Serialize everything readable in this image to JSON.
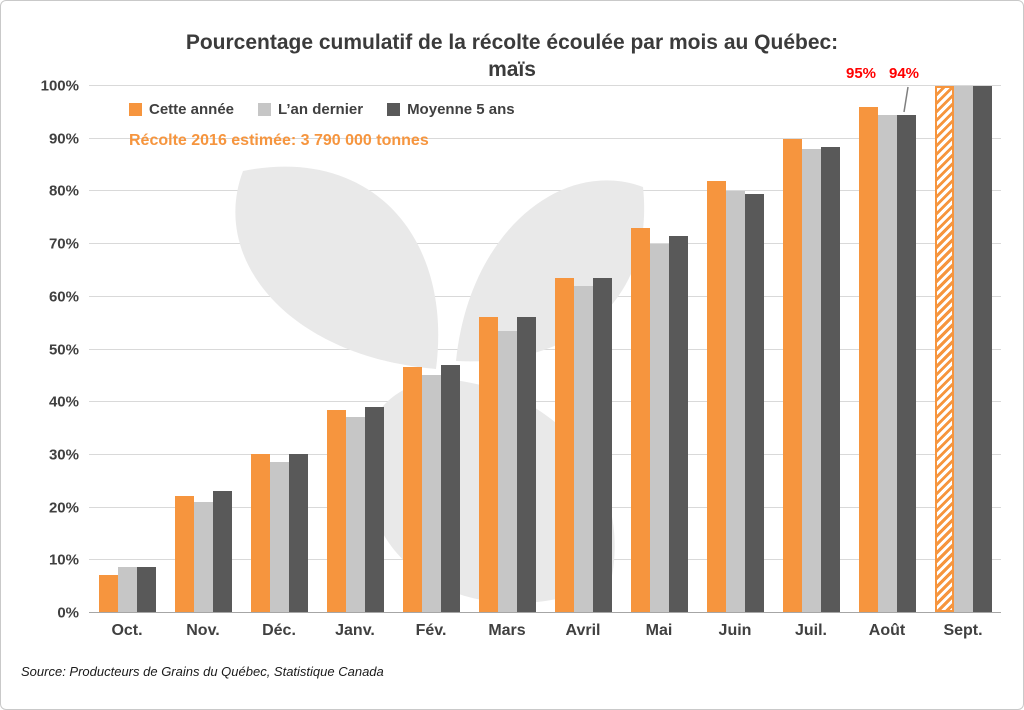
{
  "chart_data": {
    "type": "bar",
    "title_line1": "Pourcentage cumulatif de la récolte écoulée par mois au Québec:",
    "title_line2": "maïs",
    "estimate_note": "Récolte 2016 estimée: 3 790 000 tonnes",
    "source": "Source: Producteurs de Grains du Québec, Statistique Canada",
    "categories": [
      "Oct.",
      "Nov.",
      "Déc.",
      "Janv.",
      "Fév.",
      "Mars",
      "Avril",
      "Mai",
      "Juin",
      "Juil.",
      "Août",
      "Sept."
    ],
    "series": [
      {
        "name": "Cette année",
        "color": "#F6953E",
        "values": [
          7,
          22,
          30,
          38.5,
          46.5,
          56,
          63.5,
          73,
          82,
          90,
          96,
          100
        ]
      },
      {
        "name": "L’an dernier",
        "color": "#C6C6C6",
        "values": [
          8.5,
          21,
          28.5,
          37,
          45,
          53.5,
          62,
          70,
          80,
          88,
          94.5,
          100
        ]
      },
      {
        "name": "Moyenne 5 ans",
        "color": "#595959",
        "values": [
          8.5,
          23,
          30,
          39,
          47,
          56,
          63.5,
          71.5,
          79.5,
          88.5,
          94.5,
          100
        ]
      }
    ],
    "ylim": [
      0,
      100
    ],
    "ytick_step": 10,
    "yticks": [
      "0%",
      "10%",
      "20%",
      "30%",
      "40%",
      "50%",
      "60%",
      "70%",
      "80%",
      "90%",
      "100%"
    ],
    "grid": true,
    "legend_position": "top-left",
    "hatched": {
      "series_index": 0,
      "category": "Sept."
    },
    "annotations": [
      {
        "text": "95%",
        "x": 860,
        "y": 64,
        "color": "#FF0000"
      },
      {
        "text": "94%",
        "x": 903,
        "y": 64,
        "color": "#FF0000",
        "leader": {
          "x1": 907,
          "y1": 86,
          "x2": 903,
          "y2": 111,
          "color": "#7f7f7f"
        }
      }
    ]
  }
}
